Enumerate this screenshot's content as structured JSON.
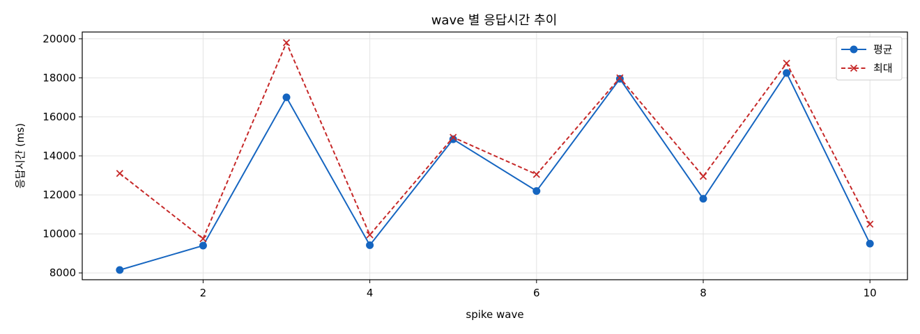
{
  "chart_data": {
    "type": "line",
    "title": "wave 별 응답시간 추이",
    "xlabel": "spike wave",
    "ylabel": "응답시간 (ms)",
    "xlim": [
      0.55,
      10.45
    ],
    "ylim": [
      7650,
      20350
    ],
    "xticks": [
      2,
      4,
      6,
      8,
      10
    ],
    "yticks": [
      8000,
      10000,
      12000,
      14000,
      16000,
      18000,
      20000
    ],
    "grid": true,
    "legend_position": "top-right",
    "x": [
      1,
      2,
      3,
      4,
      5,
      6,
      7,
      8,
      9,
      10
    ],
    "series": [
      {
        "name": "평균",
        "color": "#1565c0",
        "style": "solid",
        "marker": "circle",
        "values": [
          8150,
          9400,
          17000,
          9420,
          14850,
          12200,
          17950,
          11800,
          18250,
          9500
        ]
      },
      {
        "name": "최대",
        "color": "#c62828",
        "style": "dashed",
        "marker": "x",
        "values": [
          13100,
          9750,
          19800,
          9950,
          14950,
          13050,
          18000,
          12950,
          18750,
          10500
        ]
      }
    ]
  }
}
